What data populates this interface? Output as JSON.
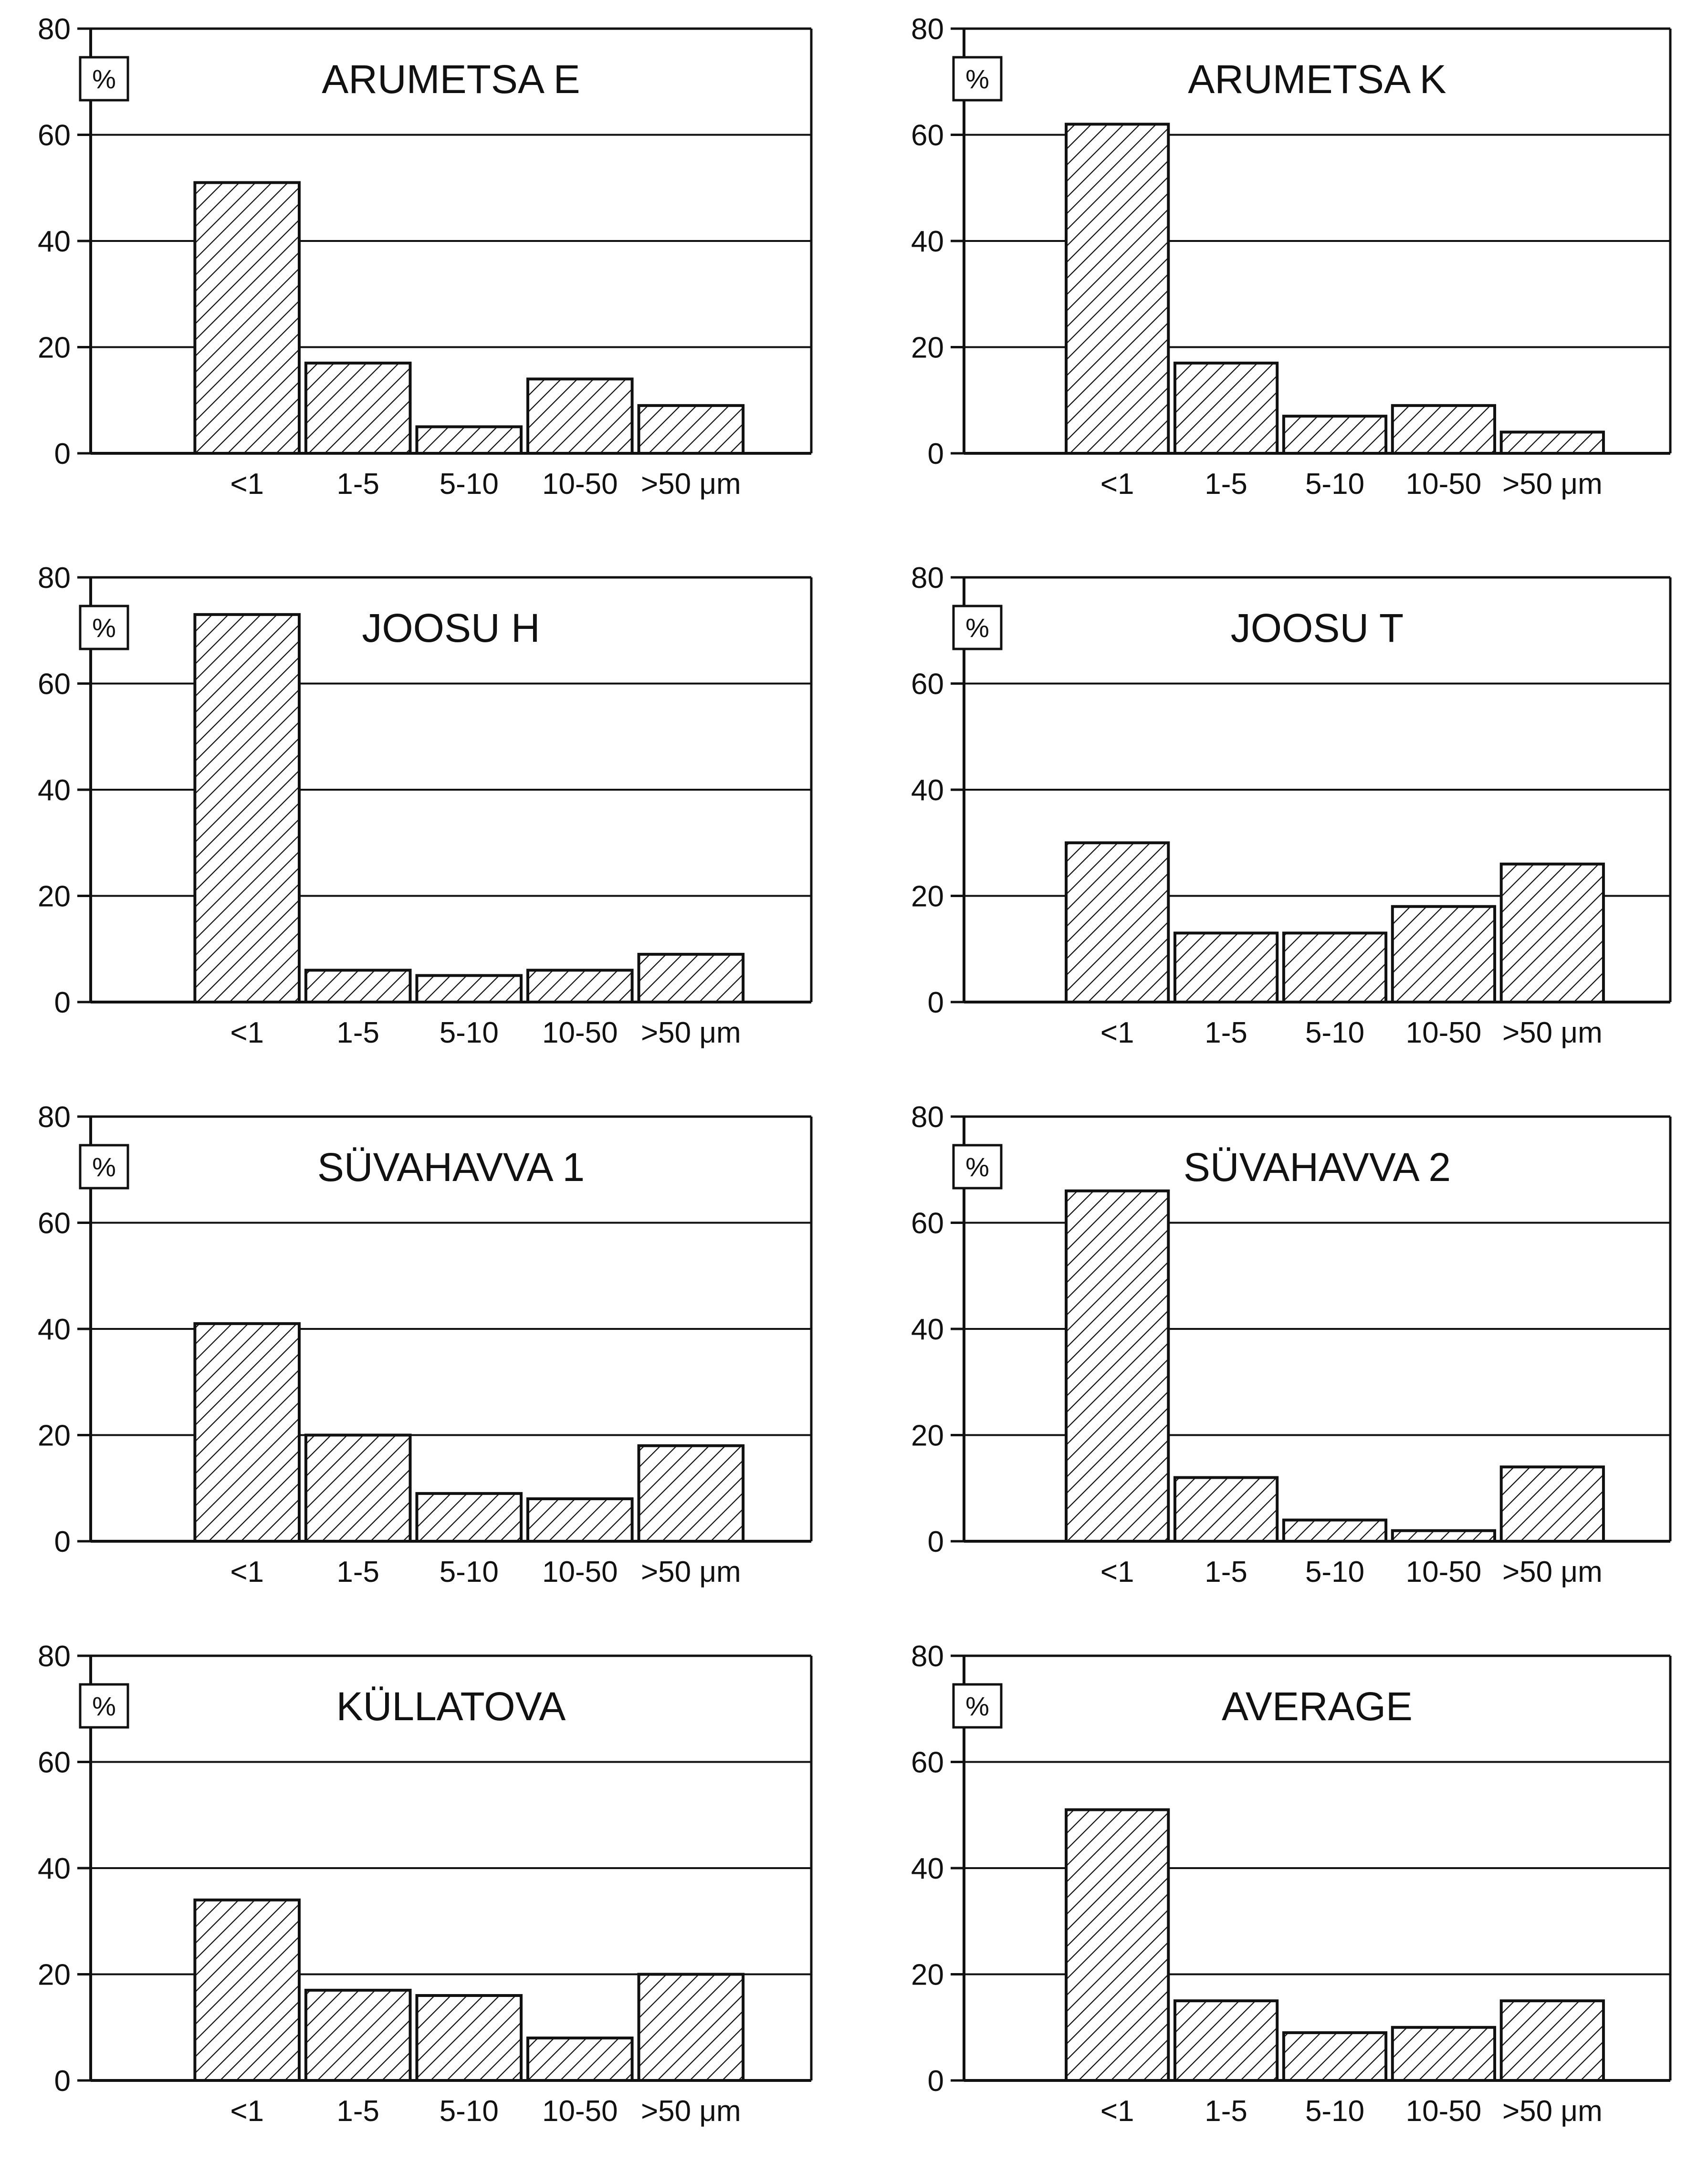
{
  "figure": {
    "unit_label": "%",
    "categories": [
      "<1",
      "1-5",
      "5-10",
      "10-50",
      ">50 μm"
    ],
    "y_ticks": [
      "0",
      "20",
      "40",
      "60",
      "80"
    ]
  },
  "chart_data": [
    {
      "type": "bar",
      "title": "ARUMETSA  E",
      "ylabel": "%",
      "xlabel": "",
      "categories": [
        "<1",
        "1-5",
        "5-10",
        "10-50",
        ">50 μm"
      ],
      "values": [
        51,
        17,
        5,
        14,
        9
      ],
      "ylim": [
        0,
        80
      ],
      "grid": true,
      "pattern": "diagonal-hatch"
    },
    {
      "type": "bar",
      "title": "ARUMETSA  K",
      "ylabel": "%",
      "xlabel": "",
      "categories": [
        "<1",
        "1-5",
        "5-10",
        "10-50",
        ">50 μm"
      ],
      "values": [
        62,
        17,
        7,
        9,
        4
      ],
      "ylim": [
        0,
        80
      ],
      "grid": true,
      "pattern": "diagonal-hatch"
    },
    {
      "type": "bar",
      "title": "JOOSU  H",
      "ylabel": "%",
      "xlabel": "",
      "categories": [
        "<1",
        "1-5",
        "5-10",
        "10-50",
        ">50 μm"
      ],
      "values": [
        73,
        6,
        5,
        6,
        9
      ],
      "ylim": [
        0,
        80
      ],
      "grid": true,
      "pattern": "diagonal-hatch"
    },
    {
      "type": "bar",
      "title": "JOOSU  T",
      "ylabel": "%",
      "xlabel": "",
      "categories": [
        "<1",
        "1-5",
        "5-10",
        "10-50",
        ">50 μm"
      ],
      "values": [
        30,
        13,
        13,
        18,
        26
      ],
      "ylim": [
        0,
        80
      ],
      "grid": true,
      "pattern": "diagonal-hatch"
    },
    {
      "type": "bar",
      "title": "SÜVAHAVVA 1",
      "ylabel": "%",
      "xlabel": "",
      "categories": [
        "<1",
        "1-5",
        "5-10",
        "10-50",
        ">50 μm"
      ],
      "values": [
        41,
        20,
        9,
        8,
        18
      ],
      "ylim": [
        0,
        80
      ],
      "grid": true,
      "pattern": "diagonal-hatch"
    },
    {
      "type": "bar",
      "title": "SÜVAHAVVA 2",
      "ylabel": "%",
      "xlabel": "",
      "categories": [
        "<1",
        "1-5",
        "5-10",
        "10-50",
        ">50 μm"
      ],
      "values": [
        66,
        12,
        4,
        2,
        14
      ],
      "ylim": [
        0,
        80
      ],
      "grid": true,
      "pattern": "diagonal-hatch"
    },
    {
      "type": "bar",
      "title": "KÜLLATOVA",
      "ylabel": "%",
      "xlabel": "",
      "categories": [
        "<1",
        "1-5",
        "5-10",
        "10-50",
        ">50 μm"
      ],
      "values": [
        34,
        17,
        16,
        8,
        20
      ],
      "ylim": [
        0,
        80
      ],
      "grid": true,
      "pattern": "diagonal-hatch"
    },
    {
      "type": "bar",
      "title": "AVERAGE",
      "ylabel": "%",
      "xlabel": "",
      "categories": [
        "<1",
        "1-5",
        "5-10",
        "10-50",
        ">50 μm"
      ],
      "values": [
        51,
        15,
        9,
        10,
        15
      ],
      "ylim": [
        0,
        80
      ],
      "grid": true,
      "pattern": "diagonal-hatch"
    }
  ]
}
